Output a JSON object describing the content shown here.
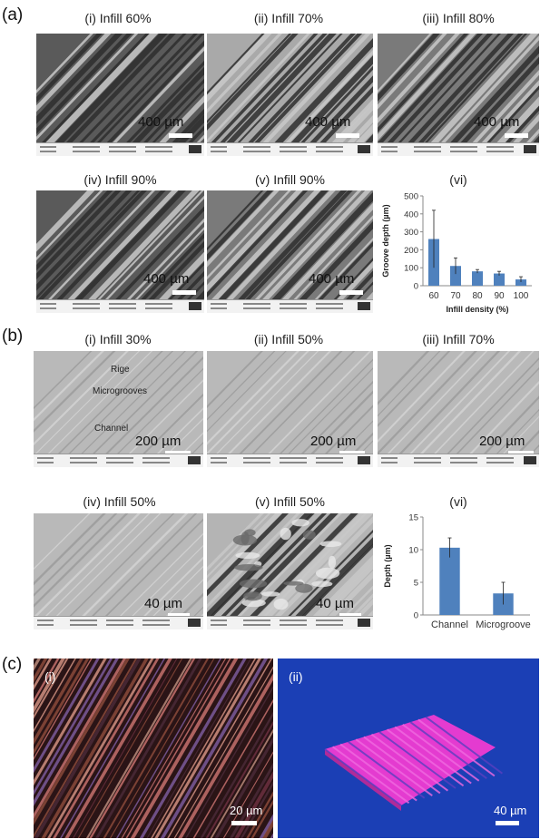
{
  "panels": {
    "a": {
      "letter": "(a)",
      "images": [
        {
          "title": "(i) Infill 60%",
          "scale": "400 µm"
        },
        {
          "title": "(ii) Infill 70%",
          "scale": "400 µm"
        },
        {
          "title": "(iii) Infill 80%",
          "scale": "400 µm"
        },
        {
          "title": "(iv) Infill 90%",
          "scale": "400 µm"
        },
        {
          "title": "(v) Infill 90%",
          "scale": "400 µm"
        }
      ],
      "chart_title": "(vi)"
    },
    "b": {
      "letter": "(b)",
      "images": [
        {
          "title": "(i) Infill 30%",
          "scale": "200 µm"
        },
        {
          "title": "(ii) Infill 50%",
          "scale": "200 µm"
        },
        {
          "title": "(iii) Infill 70%",
          "scale": "200 µm"
        },
        {
          "title": "(iv) Infill 50%",
          "scale": "40 µm"
        },
        {
          "title": "(v) Infill 50%",
          "scale": "40 µm"
        }
      ],
      "annotations": {
        "ridge": "Rige",
        "microgrooves": "Microgrooves",
        "channel": "Channel"
      },
      "chart_title": "(vi)"
    },
    "c": {
      "letter": "(c)",
      "images": [
        {
          "title": "(i)",
          "scale": "20 µm"
        },
        {
          "title": "(ii)",
          "scale": "40 µm"
        }
      ]
    }
  },
  "colors": {
    "bar": "#4f81bd",
    "micro_bg": "#1b3fb5",
    "surface": "#e43bd0"
  },
  "chart_data": [
    {
      "type": "bar",
      "categories": [
        "60",
        "70",
        "80",
        "90",
        "100"
      ],
      "values": [
        260,
        110,
        80,
        68,
        35
      ],
      "errors": [
        160,
        45,
        10,
        12,
        15
      ],
      "xlabel": "Infill density (%)",
      "ylabel": "Groove depth (µm)",
      "ylim": [
        0,
        500
      ],
      "yticks": [
        "0",
        "100",
        "200",
        "300",
        "400",
        "500"
      ],
      "grid": false
    },
    {
      "type": "bar",
      "categories": [
        "Channel",
        "Microgroove"
      ],
      "values": [
        10.3,
        3.3
      ],
      "errors": [
        1.5,
        1.7
      ],
      "xlabel": "",
      "ylabel": "Depth (µm)",
      "ylim": [
        0,
        15
      ],
      "yticks": [
        "0",
        "5",
        "10",
        "15"
      ],
      "grid": false
    }
  ]
}
